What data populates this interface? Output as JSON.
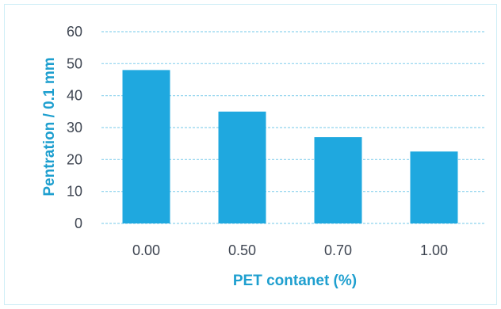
{
  "chart_data": {
    "type": "bar",
    "categories": [
      "0.00",
      "0.50",
      "0.70",
      "1.00"
    ],
    "values": [
      48,
      35,
      27,
      22.5
    ],
    "xlabel": "PET contanet (%)",
    "ylabel": "Pentration / 0.1 mm",
    "ylim": [
      0,
      60
    ],
    "yticks": [
      0,
      10,
      20,
      30,
      40,
      50,
      60
    ],
    "grid": true,
    "legend": "none",
    "colors": {
      "bar": "#1fa8df",
      "grid": "#8fd3ee",
      "axis_title": "#1e9fcf",
      "tick_text": "#3f4652"
    }
  }
}
